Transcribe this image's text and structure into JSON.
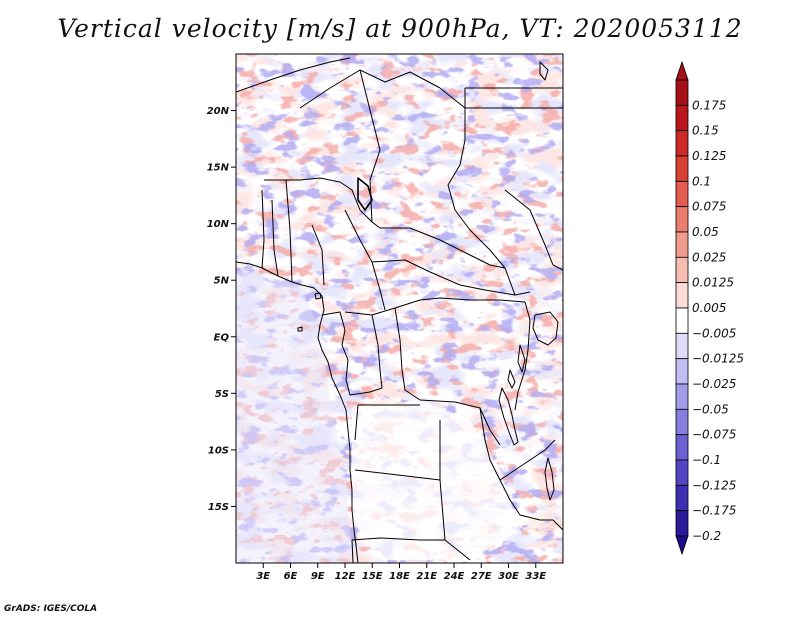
{
  "title": "Vertical velocity [m/s] at 900hPa, VT: 2020053112",
  "credit": "GrADS: IGES/COLA",
  "map": {
    "lon_range": [
      0,
      36
    ],
    "lat_range": [
      -20,
      25
    ],
    "lat_ticks": [
      {
        "value": 20,
        "label": "20N"
      },
      {
        "value": 15,
        "label": "15N"
      },
      {
        "value": 10,
        "label": "10N"
      },
      {
        "value": 5,
        "label": "5N"
      },
      {
        "value": 0,
        "label": "EQ"
      },
      {
        "value": -5,
        "label": "5S"
      },
      {
        "value": -10,
        "label": "10S"
      },
      {
        "value": -15,
        "label": "15S"
      }
    ],
    "lon_ticks": [
      {
        "value": 3,
        "label": "3E"
      },
      {
        "value": 6,
        "label": "6E"
      },
      {
        "value": 9,
        "label": "9E"
      },
      {
        "value": 12,
        "label": "12E"
      },
      {
        "value": 15,
        "label": "15E"
      },
      {
        "value": 18,
        "label": "18E"
      },
      {
        "value": 21,
        "label": "21E"
      },
      {
        "value": 24,
        "label": "24E"
      },
      {
        "value": 27,
        "label": "27E"
      },
      {
        "value": 30,
        "label": "30E"
      },
      {
        "value": 33,
        "label": "33E"
      }
    ]
  },
  "colorbar": {
    "levels": [
      {
        "label": "0.175",
        "color": "#a50f15"
      },
      {
        "label": "0.15",
        "color": "#b9171c"
      },
      {
        "label": "0.125",
        "color": "#cb2a27"
      },
      {
        "label": "0.1",
        "color": "#d94135"
      },
      {
        "label": "0.075",
        "color": "#e25d4e"
      },
      {
        "label": "0.05",
        "color": "#eb7d6f"
      },
      {
        "label": "0.025",
        "color": "#f29c90"
      },
      {
        "label": "0.0125",
        "color": "#f7bdb3"
      },
      {
        "label": "0.005",
        "color": "#fbdcd6"
      },
      {
        "label": "−0.005",
        "color": "#ffffff"
      },
      {
        "label": "−0.0125",
        "color": "#dfdcf7"
      },
      {
        "label": "−0.025",
        "color": "#c2bdf2"
      },
      {
        "label": "−0.05",
        "color": "#a39ce9"
      },
      {
        "label": "−0.075",
        "color": "#877ede"
      },
      {
        "label": "−0.1",
        "color": "#6c61d2"
      },
      {
        "label": "−0.125",
        "color": "#5445c4"
      },
      {
        "label": "−0.175",
        "color": "#3e2eb2"
      },
      {
        "label": "−0.2",
        "color": "#2b1b9c"
      }
    ],
    "top_color": "#a50f15",
    "bottom_color": "#1a0c8c"
  }
}
